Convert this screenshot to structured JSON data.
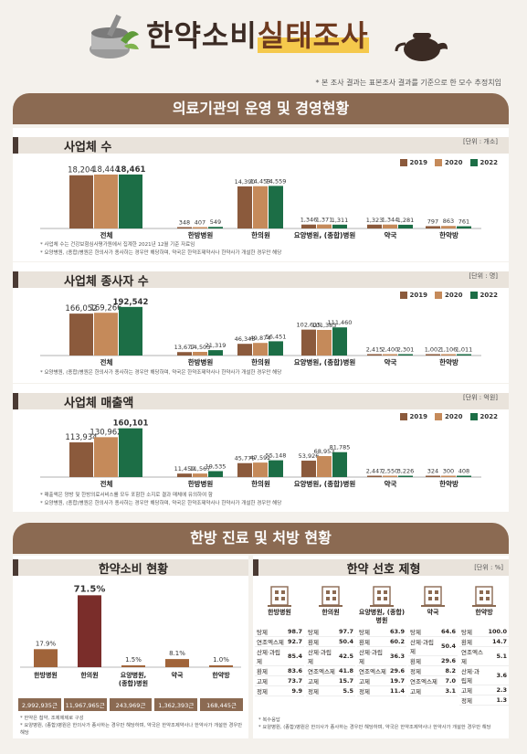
{
  "header": {
    "title_a": "한약소비",
    "title_b": "실태조사",
    "note": "* 본 조사 결과는 표본조사 결과를 기준으로 한 모수 추정치임"
  },
  "section1": {
    "title": "의료기관의 운영 및 경영현황"
  },
  "section2": {
    "title": "한방 진료 및 처방 현황"
  },
  "colors": {
    "y2019": "#8b5a3c",
    "y2020": "#c58a5a",
    "y2022": "#1c6e46",
    "brown": "#8b6a52",
    "maroon": "#7a2d2a",
    "bar": "#a0643a"
  },
  "legend": [
    "2019",
    "2020",
    "2022"
  ],
  "chart_data": [
    {
      "id": "businesses",
      "type": "bar",
      "title": "사업체 수",
      "unit": "[단위 : 개소]",
      "categories": [
        "전체",
        "한방병원",
        "한의원",
        "요양병원, (종합)병원",
        "약국",
        "한약방"
      ],
      "series": [
        {
          "name": "2019",
          "values": [
            18204,
            348,
            14390,
            1346,
            1323,
            797
          ]
        },
        {
          "name": "2020",
          "values": [
            18444,
            407,
            14459,
            1371,
            1344,
            863
          ]
        },
        {
          "name": "2022",
          "values": [
            18461,
            549,
            14559,
            1311,
            1281,
            761
          ]
        }
      ],
      "labels": [
        [
          "18,204",
          "348",
          "14,390",
          "1,346",
          "1,323",
          "797"
        ],
        [
          "18,444",
          "407",
          "14,459",
          "1,371",
          "1,344",
          "863"
        ],
        [
          "18,461",
          "549",
          "14,559",
          "1,311",
          "1,281",
          "761"
        ]
      ],
      "ylim": [
        0,
        20000
      ],
      "footnotes": [
        "* 사업체 수는 건강보험심사평가원에서 집계한 2021년 12월 기준 자료임",
        "* 요양병원, (종합)병원은 한의사가 종사하는 경우만 해당하며, 약국은 한약조제약사나 한약사가 개설한 경우만 해당"
      ]
    },
    {
      "id": "employees",
      "type": "bar",
      "title": "사업체 종사자 수",
      "unit": "[단위 : 명]",
      "categories": [
        "전체",
        "한방병원",
        "한의원",
        "요양병원, (종합)병원",
        "약국",
        "한약방"
      ],
      "series": [
        {
          "name": "2019",
          "values": [
            166052,
            13677,
            46343,
            102615,
            2415,
            1002
          ]
        },
        {
          "name": "2020",
          "values": [
            169266,
            14503,
            49874,
            101383,
            2400,
            1106
          ]
        },
        {
          "name": "2022",
          "values": [
            192542,
            21319,
            56451,
            111460,
            2301,
            1011
          ]
        }
      ],
      "labels": [
        [
          "166,052",
          "13,677",
          "46,343",
          "102,615",
          "2,415",
          "1,002"
        ],
        [
          "169,266",
          "14,503",
          "49,874",
          "101,383",
          "2,400",
          "1,106"
        ],
        [
          "192,542",
          "21,319",
          "56,451",
          "111,460",
          "2,301",
          "1,011"
        ]
      ],
      "ylim": [
        0,
        210000
      ],
      "footnotes": [
        "* 요양병원, (종합)병원은 한의사가 종사하는 경우만 해당하며, 약국은 한약조제약사나 한약사가 개설한 경우만 해당"
      ]
    },
    {
      "id": "revenue",
      "type": "bar",
      "title": "사업체 매출액",
      "unit": "[단위 : 억원]",
      "categories": [
        "전체",
        "한방병원",
        "한의원",
        "요양병원, (종합)병원",
        "약국",
        "한약방"
      ],
      "series": [
        {
          "name": "2019",
          "values": [
            113934,
            11459,
            45779,
            53926,
            2447,
            324
          ]
        },
        {
          "name": "2020",
          "values": [
            130962,
            11567,
            47592,
            68953,
            2550,
            300
          ]
        },
        {
          "name": "2022",
          "values": [
            160101,
            19535,
            55148,
            81785,
            3226,
            408
          ]
        }
      ],
      "labels": [
        [
          "113,934",
          "11,459",
          "45,779",
          "53,926",
          "2,447",
          "324"
        ],
        [
          "130,962",
          "11,567",
          "47,592",
          "68,953",
          "2,550",
          "300"
        ],
        [
          "160,101",
          "19,535",
          "55,148",
          "81,785",
          "3,226",
          "408"
        ]
      ],
      "ylim": [
        0,
        180000
      ],
      "footnotes": [
        "* 매출액은 양방 및 한방의료서비스를 모두 포함한 소지로 결과 매체에 유의하여 함",
        "* 요양병원, (종합)병원은 한의사가 종사하는 경우만 해당하며, 약국은 한약조제약사나 한약사가 개설한 경우만 해당"
      ]
    },
    {
      "id": "consumption",
      "type": "bar",
      "title": "한약소비 현황",
      "categories": [
        "한방병원",
        "한의원",
        "요양병원, (종합)병원",
        "약국",
        "한약방"
      ],
      "values": [
        17.9,
        71.5,
        1.5,
        8.1,
        1.0
      ],
      "value_labels": [
        "17.9%",
        "71.5%",
        "1.5%",
        "8.1%",
        "1.0%"
      ],
      "amounts": [
        "2,992,935근",
        "11,967,965근",
        "243,969근",
        "1,362,393근",
        "168,445근"
      ],
      "ylim": [
        0,
        80
      ],
      "footnotes": [
        "* 한약은 첩약, 조제제제로 구성",
        "* 요양병원, (종합)병원은 한의사가 종사하는 경우만 해당하며, 약국은 한약조제약사나 한약사가 개설한 경우만 해당"
      ]
    },
    {
      "id": "preference",
      "type": "table",
      "title": "한약 선호 제형",
      "unit": "[단위 : %]",
      "columns": [
        {
          "name": "한방병원",
          "rows": [
            [
              "탕제",
              "98.7"
            ],
            [
              "연조엑스제",
              "92.7"
            ],
            [
              "산제·과립제",
              "85.4"
            ],
            [
              "환제",
              "83.6"
            ],
            [
              "고제",
              "73.7"
            ],
            [
              "정제",
              "9.9"
            ]
          ]
        },
        {
          "name": "한의원",
          "rows": [
            [
              "탕제",
              "97.7"
            ],
            [
              "환제",
              "50.4"
            ],
            [
              "산제·과립제",
              "42.5"
            ],
            [
              "연조엑스제",
              "41.8"
            ],
            [
              "고제",
              "15.7"
            ],
            [
              "정제",
              "5.5"
            ]
          ]
        },
        {
          "name": "요양병원, (종합)병원",
          "rows": [
            [
              "탕제",
              "63.9"
            ],
            [
              "환제",
              "60.2"
            ],
            [
              "산제·과립제",
              "36.3"
            ],
            [
              "연조엑스제",
              "29.6"
            ],
            [
              "고제",
              "19.7"
            ],
            [
              "정제",
              "11.4"
            ]
          ]
        },
        {
          "name": "약국",
          "rows": [
            [
              "탕제",
              "64.6"
            ],
            [
              "산제·과립제",
              "50.4"
            ],
            [
              "환제",
              "29.6"
            ],
            [
              "정제",
              "8.2"
            ],
            [
              "연조엑스제",
              "7.0"
            ],
            [
              "고제",
              "3.1"
            ]
          ]
        },
        {
          "name": "한약방",
          "rows": [
            [
              "탕제",
              "100.0"
            ],
            [
              "환제",
              "14.7"
            ],
            [
              "연조엑스제",
              "5.1"
            ],
            [
              "산제·과립제",
              "3.6"
            ],
            [
              "고제",
              "2.3"
            ],
            [
              "정제",
              "1.3"
            ]
          ]
        }
      ],
      "footnotes": [
        "* 복수응답",
        "* 요양병원, (종합)병원은 한의사가 종사하는 경우만 해당하며, 약국은 한약조제약사나 한약사가 개설한 경우만 해당"
      ]
    }
  ]
}
